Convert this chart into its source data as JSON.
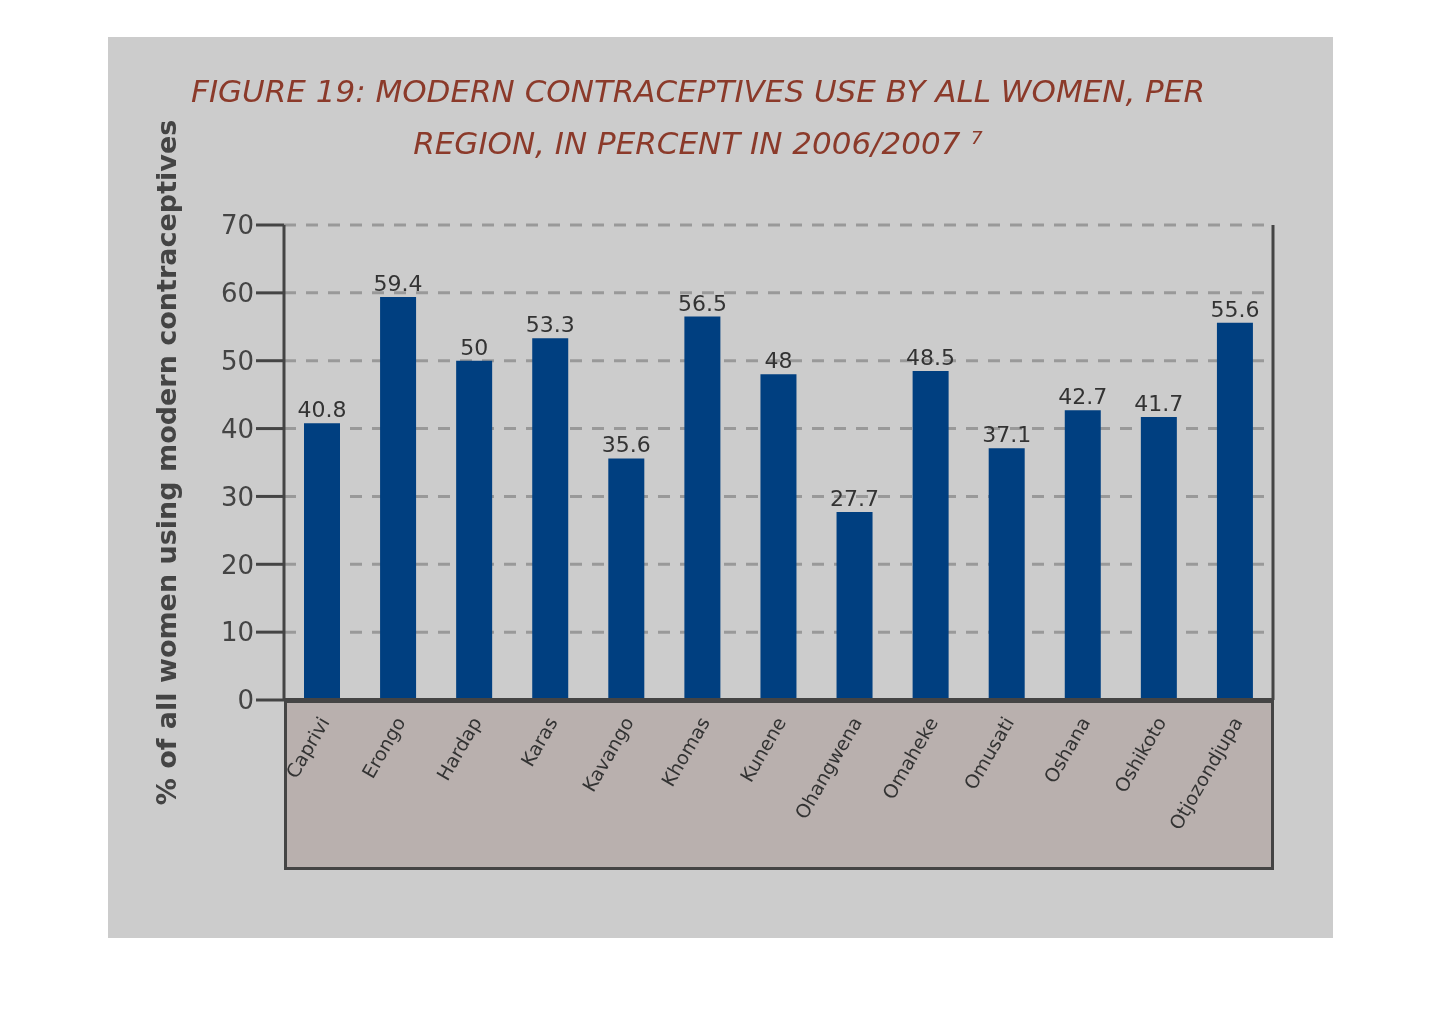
{
  "chart_data": {
    "type": "bar",
    "title": "FIGURE 19: MODERN CONTRACEPTIVES USE BY ALL WOMEN, PER REGION, IN PERCENT IN 2006/2007 ⁷",
    "ylabel": "% of all women using modern contraceptives",
    "categories": [
      "Caprivi",
      "Erongo",
      "Hardap",
      "Karas",
      "Kavango",
      "Khomas",
      "Kunene",
      "Ohangwena",
      "Omaheke",
      "Omusati",
      "Oshana",
      "Oshikoto",
      "Otjozondjupa"
    ],
    "values": [
      40.8,
      59.4,
      50,
      53.3,
      35.6,
      56.5,
      48,
      27.7,
      48.5,
      37.1,
      42.7,
      41.7,
      55.6
    ],
    "color": "#003f80",
    "ylim": [
      0,
      70
    ],
    "yticks": [
      0,
      10,
      20,
      30,
      40,
      50,
      60,
      70
    ],
    "grid": "y",
    "data_labels": true
  }
}
